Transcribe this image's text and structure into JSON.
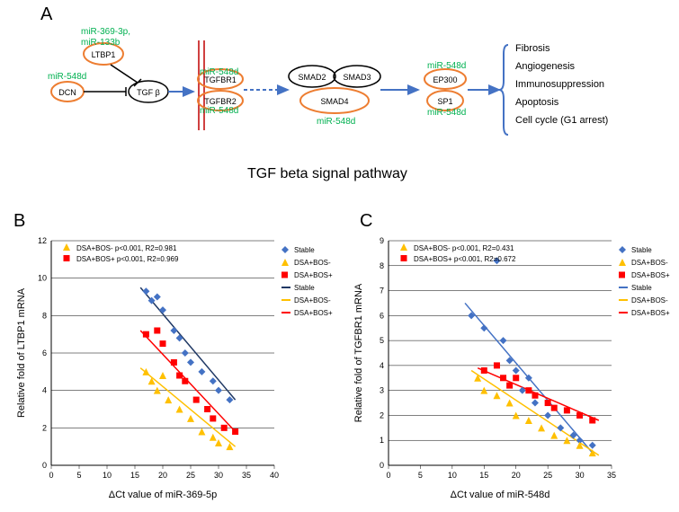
{
  "panelA": {
    "label": "A",
    "title": "TGF beta signal pathway",
    "mirLabels": {
      "m1": "miR-369-3p,",
      "m1b": "miR-133b",
      "m2": "miR-548d",
      "m3": "miR-548d",
      "m4": "miR-548d",
      "m5": "miR-548d",
      "m6": "miR-548d",
      "m7": "miR-548d"
    },
    "nodes": {
      "ltbp1": "LTBP1",
      "dcn": "DCN",
      "tgfb": "TGF β",
      "tgfbr1": "TGFBR1",
      "tgfbr2": "TGFBR2",
      "smad2": "SMAD2",
      "smad3": "SMAD3",
      "smad4": "SMAD4",
      "ep300": "EP300",
      "sp1": "SP1"
    },
    "outcomes": [
      "Fibrosis",
      "Angiogenesis",
      "Immunosuppression",
      "Apoptosis",
      "Cell cycle (G1 arrest)"
    ]
  },
  "panelB": {
    "label": "B",
    "xlabel": "ΔCt value of miR-369-5p",
    "ylabel": "Relative fold of LTBP1 mRNA",
    "xlim": [
      0,
      40
    ],
    "ylim": [
      0,
      12
    ],
    "xticks": [
      0,
      5,
      10,
      15,
      20,
      25,
      30,
      35,
      40
    ],
    "yticks": [
      0,
      2,
      4,
      6,
      8,
      10,
      12
    ],
    "stat1": "DSA+BOS-  p<0.001, R2=0.981",
    "stat2": "DSA+BOS+  p<0.001, R2=0.969",
    "legend_markers": [
      "Stable",
      "DSA+BOS-",
      "DSA+BOS+"
    ],
    "legend_lines": [
      "Stable",
      "DSA+BOS-",
      "DSA+BOS+"
    ],
    "colors": {
      "stable": "#4472c4",
      "bosn": "#ffc000",
      "bosp": "#ff0000",
      "stable_line": "#1f3864",
      "bosn_line": "#ffc000",
      "bosp_line": "#ff0000"
    },
    "stable_pts": [
      [
        17,
        9.3
      ],
      [
        18,
        8.8
      ],
      [
        19,
        9.0
      ],
      [
        20,
        8.3
      ],
      [
        22,
        7.2
      ],
      [
        23,
        6.8
      ],
      [
        24,
        6.0
      ],
      [
        25,
        5.5
      ],
      [
        27,
        5.0
      ],
      [
        29,
        4.5
      ],
      [
        30,
        4.0
      ],
      [
        32,
        3.5
      ]
    ],
    "bosn_pts": [
      [
        17,
        5.0
      ],
      [
        18,
        4.5
      ],
      [
        19,
        4.0
      ],
      [
        20,
        4.8
      ],
      [
        21,
        3.5
      ],
      [
        23,
        3.0
      ],
      [
        25,
        2.5
      ],
      [
        27,
        1.8
      ],
      [
        29,
        1.5
      ],
      [
        30,
        1.2
      ],
      [
        32,
        1.0
      ]
    ],
    "bosp_pts": [
      [
        17,
        7.0
      ],
      [
        19,
        7.2
      ],
      [
        20,
        6.5
      ],
      [
        22,
        5.5
      ],
      [
        23,
        4.8
      ],
      [
        24,
        4.5
      ],
      [
        26,
        3.5
      ],
      [
        28,
        3.0
      ],
      [
        29,
        2.5
      ],
      [
        31,
        2.0
      ],
      [
        33,
        1.8
      ]
    ],
    "stable_line": [
      [
        16,
        9.5
      ],
      [
        33,
        3.5
      ]
    ],
    "bosn_line": [
      [
        16,
        5.2
      ],
      [
        33,
        1.0
      ]
    ],
    "bosp_line": [
      [
        16,
        7.2
      ],
      [
        33,
        1.8
      ]
    ]
  },
  "panelC": {
    "label": "C",
    "xlabel": "ΔCt value of miR-548d",
    "ylabel": "Relative fold of TGFBR1 mRNA",
    "xlim": [
      0,
      35
    ],
    "ylim": [
      0,
      9
    ],
    "xticks": [
      0,
      5,
      10,
      15,
      20,
      25,
      30,
      35
    ],
    "yticks": [
      0,
      1,
      2,
      3,
      4,
      5,
      6,
      7,
      8,
      9
    ],
    "stat1": "DSA+BOS-  p<0.001, R2=0.431",
    "stat2": "DSA+BOS+  p<0.001, R2=0.672",
    "legend_markers": [
      "Stable",
      "DSA+BOS-",
      "DSA+BOS+"
    ],
    "legend_lines": [
      "Stable",
      "DSA+BOS-",
      "DSA+BOS+"
    ],
    "colors": {
      "stable": "#4472c4",
      "bosn": "#ffc000",
      "bosp": "#ff0000",
      "stable_line": "#4472c4",
      "bosn_line": "#ffc000",
      "bosp_line": "#ff0000"
    },
    "stable_pts": [
      [
        13,
        6.0
      ],
      [
        15,
        5.5
      ],
      [
        17,
        8.2
      ],
      [
        18,
        5.0
      ],
      [
        19,
        4.2
      ],
      [
        20,
        3.8
      ],
      [
        21,
        3.0
      ],
      [
        22,
        3.5
      ],
      [
        23,
        2.5
      ],
      [
        25,
        2.0
      ],
      [
        27,
        1.5
      ],
      [
        29,
        1.2
      ],
      [
        30,
        1.0
      ],
      [
        32,
        0.8
      ]
    ],
    "bosn_pts": [
      [
        14,
        3.5
      ],
      [
        15,
        3.0
      ],
      [
        17,
        2.8
      ],
      [
        19,
        2.5
      ],
      [
        20,
        2.0
      ],
      [
        22,
        1.8
      ],
      [
        24,
        1.5
      ],
      [
        26,
        1.2
      ],
      [
        28,
        1.0
      ],
      [
        30,
        0.8
      ],
      [
        32,
        0.5
      ]
    ],
    "bosp_pts": [
      [
        15,
        3.8
      ],
      [
        17,
        4.0
      ],
      [
        18,
        3.5
      ],
      [
        19,
        3.2
      ],
      [
        20,
        3.5
      ],
      [
        22,
        3.0
      ],
      [
        23,
        2.8
      ],
      [
        25,
        2.5
      ],
      [
        26,
        2.3
      ],
      [
        28,
        2.2
      ],
      [
        30,
        2.0
      ],
      [
        32,
        1.8
      ]
    ],
    "stable_line": [
      [
        12,
        6.5
      ],
      [
        32,
        0.5
      ]
    ],
    "bosn_line": [
      [
        13,
        3.8
      ],
      [
        33,
        0.4
      ]
    ],
    "bosp_line": [
      [
        14,
        3.9
      ],
      [
        33,
        1.8
      ]
    ]
  }
}
